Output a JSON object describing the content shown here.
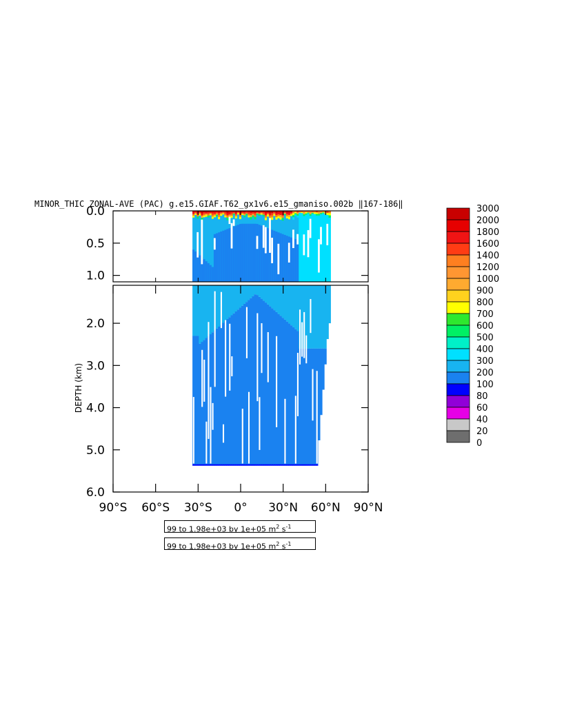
{
  "chart_data": {
    "type": "heatmap",
    "title": "MINOR_THIC ZONAL-AVE (PAC) g.e15.GIAF.T62_gx1v6.e15_gmaniso.002b ‖167-186‖",
    "ylabel": "DEPTH (km)",
    "xlabel": "",
    "x_ticks": [
      "90°S",
      "60°S",
      "30°S",
      "0°",
      "30°N",
      "60°N",
      "90°N"
    ],
    "y_ticks_upper": [
      "0.0",
      "0.5",
      "1.0"
    ],
    "y_ticks_lower": [
      "2.0",
      "3.0",
      "4.0",
      "5.0",
      "6.0"
    ],
    "xlim": [
      -90,
      90
    ],
    "ylim_upper": [
      0,
      1.1
    ],
    "ylim_lower": [
      1.1,
      6.0
    ],
    "data_extent": {
      "lat": [
        -34,
        63
      ],
      "depth_km": [
        0,
        5.375
      ]
    },
    "levels": [
      0,
      20,
      40,
      60,
      80,
      100,
      200,
      300,
      400,
      500,
      600,
      700,
      800,
      900,
      1000,
      1200,
      1400,
      1600,
      1800,
      2000,
      3000
    ],
    "colors": [
      "#6e6e6e",
      "#c8c8c8",
      "#e600e6",
      "#9100d8",
      "#0000ff",
      "#1a82f0",
      "#18b4f0",
      "#00e0ff",
      "#00f0c8",
      "#00f064",
      "#2ee82e",
      "#ffff00",
      "#ffd21e",
      "#ffaa30",
      "#ff9632",
      "#ff7f20",
      "#ff3c14",
      "#f01414",
      "#e60000",
      "#c80000"
    ],
    "colorbar_labels": [
      "3000",
      "2000",
      "1800",
      "1600",
      "1400",
      "1200",
      "1000",
      "900",
      "800",
      "700",
      "600",
      "500",
      "400",
      "300",
      "200",
      "100",
      "80",
      "60",
      "40",
      "20",
      "0"
    ]
  },
  "info": {
    "line1_prefix": "99 to 1.98e+03 by 1e+05 m",
    "line1_sup1": "2",
    "line1_mid": " s",
    "line1_sup2": "-1",
    "line2_prefix": "99 to 1.98e+03 by 1e+05 m",
    "line2_sup1": "2",
    "line2_mid": " s",
    "line2_sup2": "-1"
  }
}
